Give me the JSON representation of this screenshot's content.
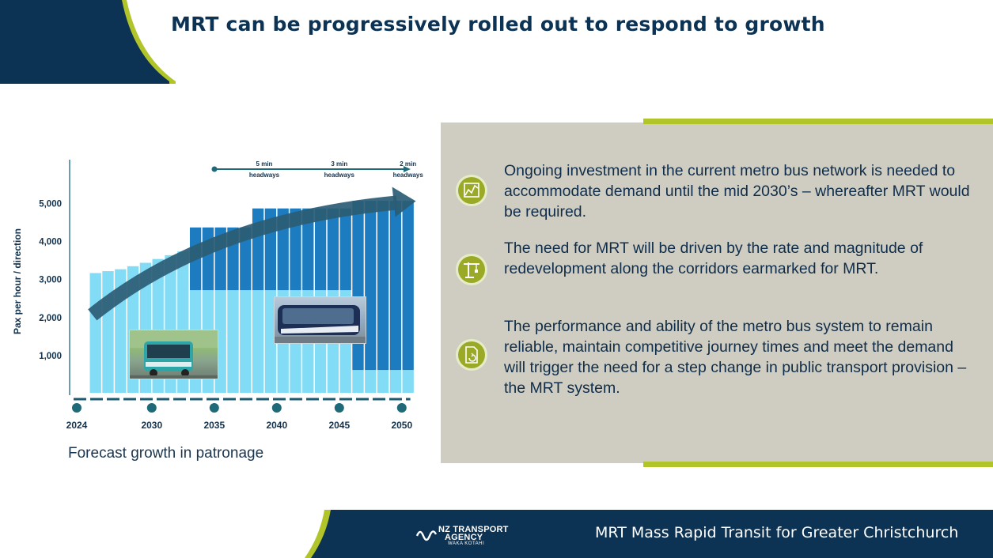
{
  "header": {
    "title": "MRT can be progressively rolled out to respond to growth"
  },
  "chart_data": {
    "type": "bar",
    "ylabel": "Pax per hour / direction",
    "yticks": [
      "1,000",
      "2,000",
      "3,000",
      "4,000",
      "5,000"
    ],
    "ylim": [
      0,
      6000
    ],
    "x_years": [
      2024,
      2025,
      2026,
      2027,
      2028,
      2029,
      2030,
      2031,
      2032,
      2033,
      2034,
      2035,
      2036,
      2037,
      2038,
      2039,
      2040,
      2041,
      2042,
      2043,
      2044,
      2045,
      2046,
      2047,
      2048,
      2049,
      2050,
      2051
    ],
    "x_tick_labels": [
      "2024",
      "2030",
      "2035",
      "2040",
      "2045",
      "2050"
    ],
    "x_tick_years": [
      2024,
      2030,
      2035,
      2040,
      2045,
      2050
    ],
    "series": [
      {
        "name": "metro bus",
        "color": "#82dcf5",
        "values": [
          3150,
          3200,
          3250,
          3330,
          3420,
          3520,
          3620,
          3720,
          2700,
          2700,
          2700,
          2700,
          2700,
          2700,
          2700,
          2700,
          2700,
          2700,
          2700,
          2700,
          2700,
          600,
          600,
          600,
          600,
          600
        ]
      },
      {
        "name": "MRT",
        "color": "#1d7cc0",
        "values": [
          0,
          0,
          0,
          0,
          0,
          0,
          0,
          0,
          1650,
          1650,
          1650,
          1650,
          1650,
          2150,
          2150,
          2150,
          2150,
          2150,
          2150,
          2150,
          2150,
          4450,
          4450,
          4450,
          4450,
          4450
        ]
      }
    ],
    "bar_years": [
      2025,
      2026,
      2027,
      2028,
      2029,
      2030,
      2031,
      2032,
      2033,
      2034,
      2035,
      2036,
      2037,
      2038,
      2039,
      2040,
      2041,
      2042,
      2043,
      2044,
      2045,
      2046,
      2047,
      2048,
      2049,
      2050
    ],
    "headways": [
      {
        "label1": "5 min",
        "label2": "headways",
        "year": 2039
      },
      {
        "label1": "3 min",
        "label2": "headways",
        "year": 2045
      },
      {
        "label1": "2 min",
        "label2": "headways",
        "year": 2050.5
      }
    ],
    "trend_arrow": {
      "from": [
        2025,
        2050
      ],
      "to": [
        2051,
        5000
      ],
      "color": "#2b5c74"
    },
    "caption": "Forecast growth in patronage"
  },
  "panel": {
    "bullets": [
      {
        "icon": "line-chart-icon",
        "text": "Ongoing investment in the current metro bus network is needed to accommodate demand until the mid 2030’s – whereafter MRT would be required."
      },
      {
        "icon": "crane-icon",
        "text": "The need for MRT will be driven by the rate and magnitude of redevelopment along the corridors earmarked for MRT."
      },
      {
        "icon": "document-refresh-icon",
        "text": "The performance and ability of the metro bus system to remain reliable, maintain competitive journey times and meet the demand will trigger the need for a step change in public transport provision – the MRT system."
      }
    ]
  },
  "footer": {
    "logo_line1": "NZ TRANSPORT",
    "logo_line2": "AGENCY",
    "logo_sub": "WAKA KOTAHI",
    "text": "MRT Mass Rapid Transit for Greater Christchurch"
  },
  "colors": {
    "navy": "#0d3354",
    "lime": "#b1c42a",
    "panel": "#cfcdc2"
  }
}
